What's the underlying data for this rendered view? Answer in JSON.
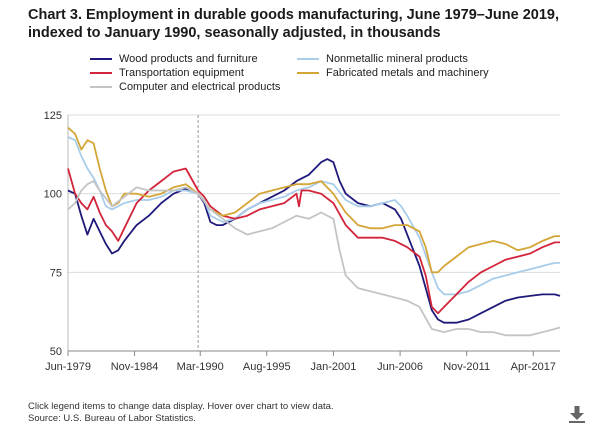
{
  "title_line1": "Chart 3. Employment in durable goods manufacturing, June 1979–June 2019,",
  "title_line2": "indexed to January 1990, seasonally adjusted, in thousands",
  "footnote_line1": "Click legend items to change data display. Hover over chart to view data.",
  "footnote_line2": "Source: U.S. Bureau of Labor Statistics.",
  "download_icon": "download-arrow-icon",
  "colors": {
    "wood": "#1f1a7a",
    "nonmetallic": "#a8cdea",
    "transport": "#d2243b",
    "fabricated": "#d4a537",
    "computer": "#c4c4c4",
    "grid": "#dddddd",
    "reference": "#999999"
  },
  "chart_data": {
    "type": "line",
    "title": "Chart 3. Employment in durable goods manufacturing, June 1979–June 2019, indexed to January 1990, seasonally adjusted, in thousands",
    "x_tick_labels": [
      "Jun-1979",
      "Nov-1984",
      "Mar-1990",
      "Aug-1995",
      "Jan-2001",
      "Jun-2006",
      "Nov-2011",
      "Apr-2017"
    ],
    "x_ticks": [
      1979.42,
      1984.83,
      1990.17,
      1995.58,
      2001.0,
      2006.42,
      2011.83,
      2017.25
    ],
    "xlim": [
      1979.42,
      2019.42
    ],
    "ylim": [
      50,
      125
    ],
    "y_ticks": [
      50,
      75,
      100,
      125
    ],
    "reference_line_x": 1990.0,
    "grid": true,
    "legend_position": "top",
    "series": [
      {
        "name": "Wood products and furniture",
        "key": "wood",
        "x": [
          1979.42,
          1980.0,
          1980.5,
          1981.0,
          1981.5,
          1982.0,
          1982.5,
          1983.0,
          1983.5,
          1984.0,
          1985.0,
          1986.0,
          1987.0,
          1988.0,
          1989.0,
          1990.0,
          1990.5,
          1991.0,
          1991.5,
          1992.0,
          1993.0,
          1994.0,
          1995.0,
          1996.0,
          1997.0,
          1998.0,
          1999.0,
          2000.0,
          2000.5,
          2001.0,
          2001.5,
          2002.0,
          2003.0,
          2004.0,
          2005.0,
          2006.0,
          2006.5,
          2007.0,
          2007.5,
          2008.0,
          2008.5,
          2009.0,
          2009.5,
          2010.0,
          2011.0,
          2012.0,
          2013.0,
          2014.0,
          2015.0,
          2016.0,
          2017.0,
          2018.0,
          2019.0,
          2019.42
        ],
        "values": [
          101,
          100,
          93,
          87,
          92,
          88,
          84,
          81,
          82,
          85,
          90,
          93,
          97,
          100,
          101.5,
          100,
          97,
          91,
          90,
          90,
          92,
          95,
          97,
          99,
          101,
          104,
          106,
          110,
          111,
          110,
          104,
          100,
          97,
          96,
          97,
          95,
          92,
          87,
          82,
          77,
          70,
          63,
          60,
          59,
          59,
          60,
          62,
          64,
          66,
          67,
          67.5,
          68,
          68,
          67.5
        ]
      },
      {
        "name": "Nonmetallic mineral products",
        "key": "nonmetallic",
        "x": [
          1979.42,
          1980.0,
          1980.5,
          1981.0,
          1981.5,
          1982.0,
          1982.5,
          1983.0,
          1984.0,
          1985.0,
          1986.0,
          1987.0,
          1988.0,
          1989.0,
          1990.0,
          1990.5,
          1991.0,
          1992.0,
          1993.0,
          1994.0,
          1995.0,
          1996.0,
          1997.0,
          1998.0,
          1999.0,
          2000.0,
          2001.0,
          2002.0,
          2003.0,
          2004.0,
          2005.0,
          2006.0,
          2006.5,
          2007.0,
          2008.0,
          2009.0,
          2009.5,
          2010.0,
          2011.0,
          2012.0,
          2013.0,
          2014.0,
          2015.0,
          2016.0,
          2017.0,
          2018.0,
          2019.0,
          2019.42
        ],
        "values": [
          118,
          117,
          112,
          108,
          105,
          101,
          96,
          95,
          97,
          98,
          98,
          99,
          101,
          101,
          100,
          98,
          93,
          91,
          92,
          95,
          97,
          98,
          99,
          101,
          102,
          104,
          103,
          98,
          96,
          96,
          97,
          98,
          96,
          93,
          86,
          75,
          70,
          68,
          68,
          69,
          71,
          73,
          74,
          75,
          76,
          77,
          78,
          78
        ]
      },
      {
        "name": "Transportation equipment",
        "key": "transport",
        "x": [
          1979.42,
          1980.0,
          1980.5,
          1981.0,
          1981.5,
          1982.0,
          1982.5,
          1983.0,
          1983.5,
          1984.0,
          1985.0,
          1986.0,
          1987.0,
          1988.0,
          1989.0,
          1990.0,
          1990.5,
          1991.0,
          1992.0,
          1993.0,
          1994.0,
          1995.0,
          1996.0,
          1997.0,
          1998.0,
          1998.2,
          1998.4,
          1999.0,
          2000.0,
          2001.0,
          2002.0,
          2003.0,
          2004.0,
          2005.0,
          2006.0,
          2007.0,
          2008.0,
          2008.5,
          2009.0,
          2009.5,
          2010.0,
          2011.0,
          2012.0,
          2013.0,
          2014.0,
          2015.0,
          2016.0,
          2017.0,
          2018.0,
          2019.0,
          2019.42
        ],
        "values": [
          108,
          100,
          97,
          95,
          99,
          94,
          90,
          88,
          85,
          89,
          97,
          101,
          104,
          107,
          108,
          101,
          99,
          96,
          93,
          92,
          93,
          95,
          96,
          97,
          100,
          96,
          101,
          101,
          100,
          97,
          90,
          86,
          86,
          86,
          85,
          83,
          80,
          74,
          64,
          62,
          64,
          68,
          72,
          75,
          77,
          79,
          80,
          81,
          83,
          84.5,
          84.5
        ]
      },
      {
        "name": "Fabricated metals and machinery",
        "key": "fabricated",
        "x": [
          1979.42,
          1980.0,
          1980.5,
          1981.0,
          1981.5,
          1982.0,
          1982.5,
          1983.0,
          1983.5,
          1984.0,
          1985.0,
          1986.0,
          1987.0,
          1988.0,
          1989.0,
          1990.0,
          1991.0,
          1992.0,
          1993.0,
          1994.0,
          1995.0,
          1996.0,
          1997.0,
          1998.0,
          1999.0,
          2000.0,
          2001.0,
          2002.0,
          2003.0,
          2004.0,
          2005.0,
          2006.0,
          2007.0,
          2008.0,
          2008.5,
          2009.0,
          2009.5,
          2010.0,
          2011.0,
          2012.0,
          2013.0,
          2014.0,
          2015.0,
          2016.0,
          2017.0,
          2018.0,
          2019.0,
          2019.42
        ],
        "values": [
          121,
          119,
          114,
          117,
          116,
          108,
          101,
          96,
          97,
          100,
          100,
          99,
          100,
          102,
          103,
          100,
          95,
          93,
          94,
          97,
          100,
          101,
          102,
          103,
          103,
          104,
          100,
          94,
          90,
          89,
          89,
          90,
          90,
          88,
          83,
          75,
          75,
          77,
          80,
          83,
          84,
          85,
          84,
          82,
          83,
          85,
          86.5,
          86.5
        ]
      },
      {
        "name": "Computer and electrical products",
        "key": "computer",
        "x": [
          1979.42,
          1980.0,
          1980.5,
          1981.0,
          1981.5,
          1982.0,
          1983.0,
          1984.0,
          1985.0,
          1986.0,
          1987.0,
          1988.0,
          1989.0,
          1990.0,
          1991.0,
          1992.0,
          1993.0,
          1994.0,
          1995.0,
          1996.0,
          1997.0,
          1998.0,
          1999.0,
          2000.0,
          2001.0,
          2001.5,
          2002.0,
          2003.0,
          2004.0,
          2005.0,
          2006.0,
          2007.0,
          2008.0,
          2009.0,
          2010.0,
          2011.0,
          2012.0,
          2013.0,
          2014.0,
          2015.0,
          2016.0,
          2017.0,
          2018.0,
          2019.0,
          2019.42
        ],
        "values": [
          95,
          97,
          101,
          103,
          104,
          101,
          96,
          99,
          102,
          101,
          101,
          101,
          102,
          100,
          95,
          92,
          89,
          87,
          88,
          89,
          91,
          93,
          92,
          94,
          92,
          82,
          74,
          70,
          69,
          68,
          67,
          66,
          64,
          57,
          56,
          57,
          57,
          56,
          56,
          55,
          55,
          55,
          56,
          57,
          57.5
        ]
      }
    ]
  }
}
